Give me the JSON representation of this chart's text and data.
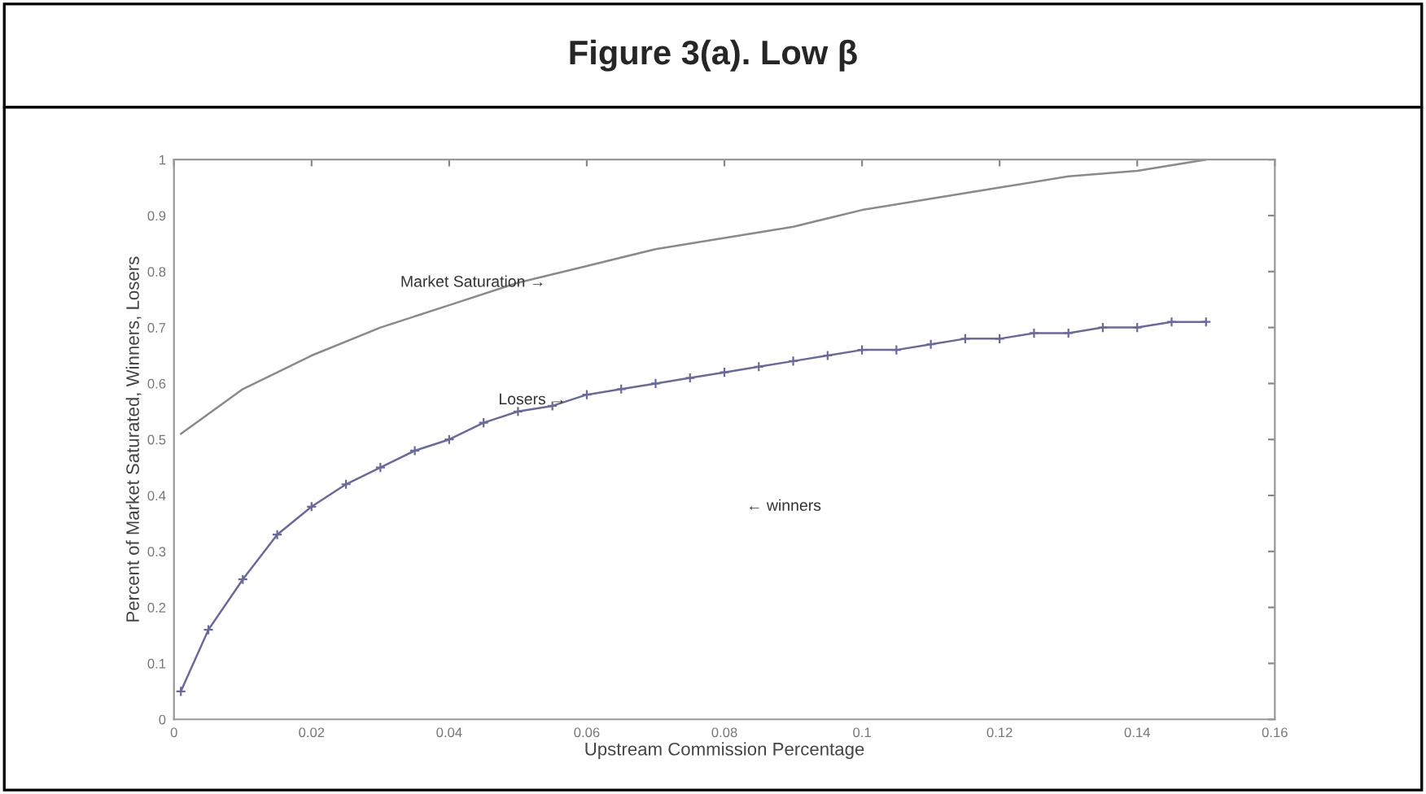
{
  "chart_data": {
    "type": "line",
    "title": "Figure 3(a). Low β",
    "xlabel": "Upstream Commission Percentage",
    "ylabel": "Percent of Market Saturated, Winners, Losers",
    "series": [
      {
        "color": "#8a8a8a",
        "marker": "none",
        "x": [
          0.001,
          0.01,
          0.02,
          0.03,
          0.04,
          0.05,
          0.06,
          0.07,
          0.08,
          0.09,
          0.1,
          0.11,
          0.12,
          0.13,
          0.14,
          0.15
        ],
        "values": [
          0.51,
          0.59,
          0.65,
          0.7,
          0.74,
          0.78,
          0.81,
          0.84,
          0.86,
          0.88,
          0.91,
          0.93,
          0.95,
          0.97,
          0.98,
          1.0
        ]
      },
      {
        "color": "#6a6a9a",
        "marker": "cross",
        "x": [
          0.001,
          0.005,
          0.01,
          0.015,
          0.02,
          0.025,
          0.03,
          0.035,
          0.04,
          0.045,
          0.05,
          0.055,
          0.06,
          0.065,
          0.07,
          0.075,
          0.08,
          0.085,
          0.09,
          0.095,
          0.1,
          0.105,
          0.11,
          0.115,
          0.12,
          0.125,
          0.13,
          0.135,
          0.14,
          0.145,
          0.15
        ],
        "values": [
          0.05,
          0.16,
          0.25,
          0.33,
          0.38,
          0.42,
          0.45,
          0.48,
          0.5,
          0.53,
          0.55,
          0.56,
          0.58,
          0.59,
          0.6,
          0.61,
          0.62,
          0.63,
          0.64,
          0.65,
          0.66,
          0.66,
          0.67,
          0.68,
          0.68,
          0.69,
          0.69,
          0.7,
          0.7,
          0.71,
          0.71
        ]
      }
    ],
    "annotations": [
      {
        "text": "Market Saturation →",
        "x": 0.054,
        "y": 0.78
      },
      {
        "text": "Losers →",
        "x": 0.057,
        "y": 0.57
      },
      "← winners"
    ],
    "xlim": [
      0,
      0.16
    ],
    "ylim": [
      0,
      1
    ],
    "xticks": [
      0,
      0.02,
      0.04,
      0.06,
      0.08,
      {
        "value": 0.1,
        "label": "0.1"
      },
      0.12,
      0.14,
      0.16
    ],
    "yticks": [
      0,
      0.1,
      0.2,
      0.3,
      0.4,
      0.5,
      0.6,
      0.7,
      0.8,
      0.9,
      1
    ],
    "grid": false,
    "line_style": "solid"
  }
}
